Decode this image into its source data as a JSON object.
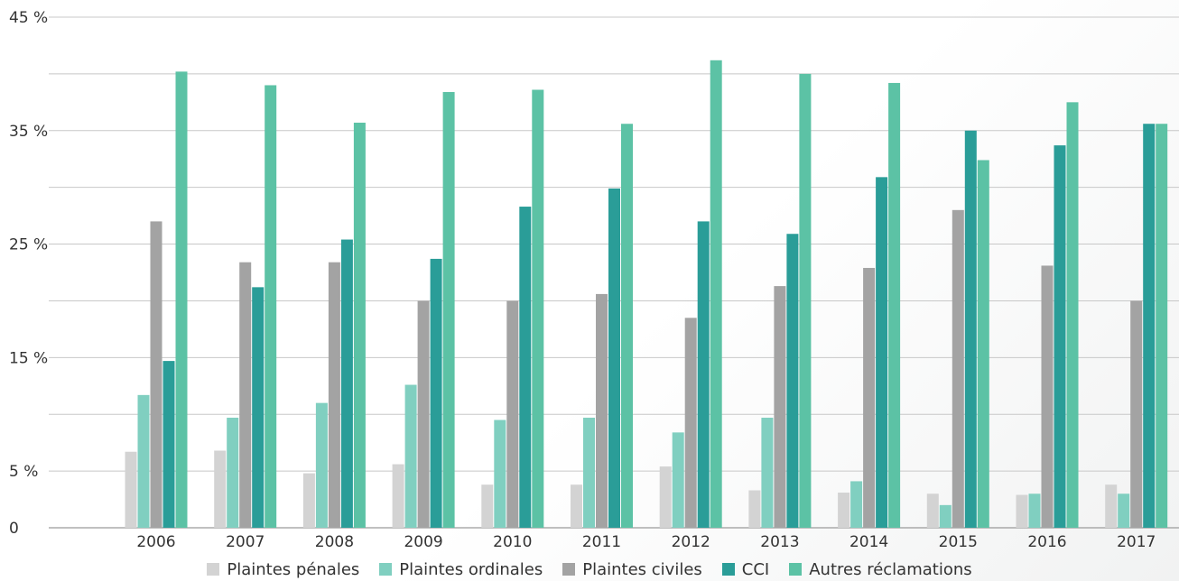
{
  "chart_data": {
    "type": "bar",
    "categories": [
      "2006",
      "2007",
      "2008",
      "2009",
      "2010",
      "2011",
      "2012",
      "2013",
      "2014",
      "2015",
      "2016",
      "2017"
    ],
    "series": [
      {
        "name": "Plaintes pénales",
        "color": "#d3d3d3",
        "values": [
          6.7,
          6.8,
          4.8,
          5.6,
          3.8,
          3.8,
          5.4,
          3.3,
          3.1,
          3.0,
          2.9,
          3.8
        ]
      },
      {
        "name": "Plaintes ordinales",
        "color": "#80cfc0",
        "values": [
          11.7,
          9.7,
          11.0,
          12.6,
          9.5,
          9.7,
          8.4,
          9.7,
          4.1,
          2.0,
          3.0,
          3.0
        ]
      },
      {
        "name": "Plaintes civiles",
        "color": "#a3a3a3",
        "values": [
          27.0,
          23.4,
          23.4,
          20.0,
          20.0,
          20.6,
          18.5,
          21.3,
          22.9,
          28.0,
          23.1,
          20.0
        ]
      },
      {
        "name": "CCI",
        "color": "#2a9d98",
        "values": [
          14.7,
          21.2,
          25.4,
          23.7,
          28.3,
          29.9,
          27.0,
          25.9,
          30.9,
          35.0,
          33.7,
          35.6
        ]
      },
      {
        "name": "Autres réclamations",
        "color": "#5cc2a5",
        "values": [
          40.2,
          39.0,
          35.7,
          38.4,
          38.6,
          35.6,
          41.2,
          40.0,
          39.2,
          32.4,
          37.5,
          35.6
        ]
      }
    ],
    "yticks": [
      0,
      5,
      15,
      25,
      35,
      45
    ],
    "ytick_labels": [
      "0",
      "5 %",
      "15 %",
      "25 %",
      "35 %",
      "45 %"
    ],
    "gridlines": [
      5,
      10,
      15,
      20,
      25,
      30,
      35,
      40,
      45
    ],
    "ylim": [
      0,
      45
    ],
    "title": "",
    "xlabel": "",
    "ylabel": "",
    "legend_position": "bottom"
  }
}
